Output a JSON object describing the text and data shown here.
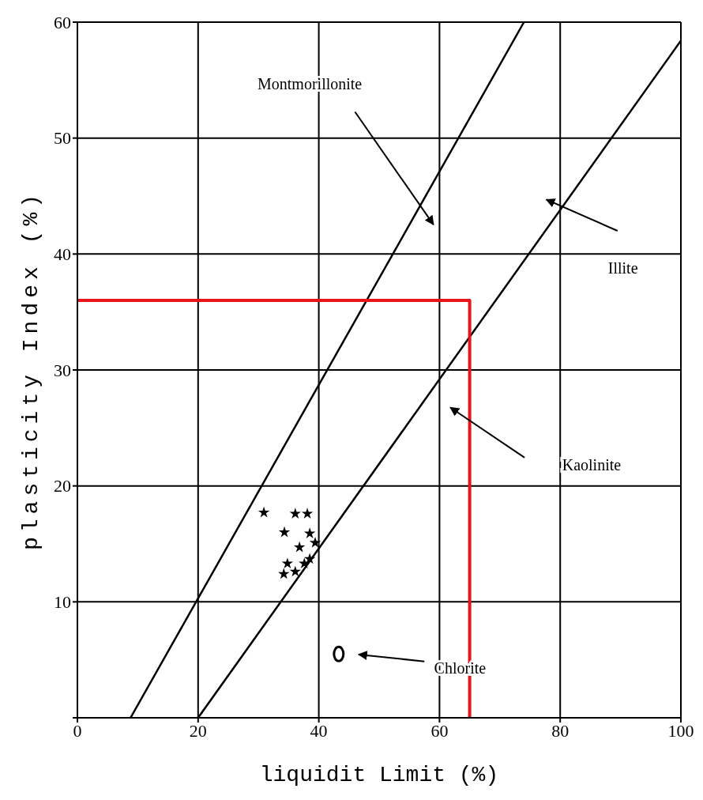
{
  "chart_data": {
    "type": "line",
    "xlabel": "liquidit Limit (%)",
    "ylabel": "plasticity Index (%)",
    "xlim": [
      0,
      100
    ],
    "xticks": [
      0,
      20,
      40,
      60,
      80,
      100
    ],
    "ylim": [
      0,
      60
    ],
    "yticks": [
      {
        "value": 0,
        "label": null
      },
      10,
      20,
      30,
      40,
      50,
      60
    ],
    "grid": true,
    "series": [
      {
        "color": "#000000",
        "marker": "none",
        "x": [
          8.8,
          74
        ],
        "values": [
          0,
          60
        ]
      },
      {
        "color": "#000000",
        "marker": "none",
        "x": [
          20,
          100
        ],
        "values": [
          0,
          58.4
        ]
      },
      {
        "color": "#e8141c",
        "marker": "none",
        "x": [
          0,
          65,
          65
        ],
        "values": [
          36,
          36,
          0
        ]
      },
      {
        "type": "scatter",
        "color": "#000000",
        "marker": "star",
        "x": [
          30.9,
          36.1,
          38.1,
          34.3,
          38.5,
          39.4,
          36.8,
          34.8,
          37.6,
          34.2,
          36.1,
          38.5
        ],
        "values": [
          17.7,
          17.6,
          17.6,
          16,
          15.9,
          15.1,
          14.7,
          13.3,
          13.3,
          12.4,
          12.6,
          13.7
        ]
      },
      {
        "type": "scatter",
        "color": "#000000",
        "marker": "circle",
        "x": [
          43.3
        ],
        "values": [
          5.5
        ]
      }
    ],
    "annotations": [
      "Montmorillonite",
      "Illite",
      "Kaolinite",
      "Chlorite"
    ]
  }
}
